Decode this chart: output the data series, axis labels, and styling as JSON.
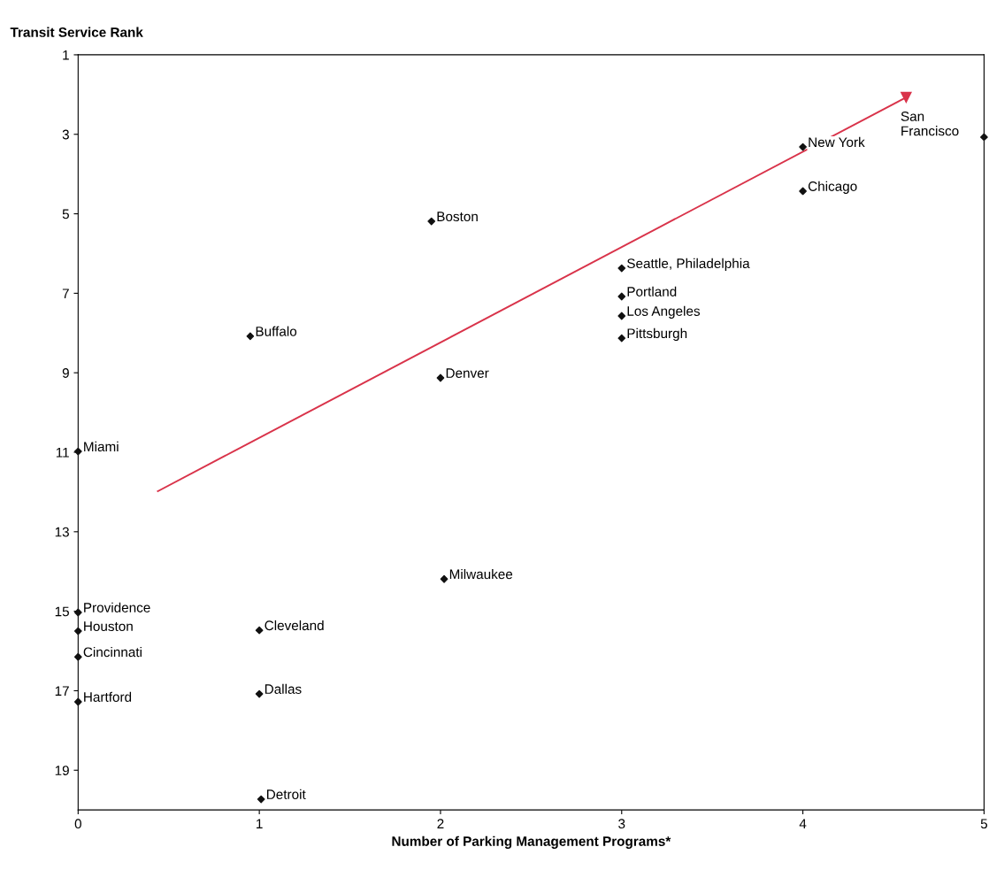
{
  "chart_data": {
    "type": "scatter",
    "xlabel": "Number of Parking Management Programs*",
    "ylabel": "Transit Service Rank",
    "xlim": [
      0,
      5
    ],
    "xticks": [
      0,
      1,
      2,
      3,
      4,
      5
    ],
    "ylim": [
      20,
      1
    ],
    "yticks": [
      1,
      3,
      5,
      7,
      9,
      11,
      13,
      15,
      17,
      19
    ],
    "grid": false,
    "legend": false,
    "series": [
      {
        "color": "#111111",
        "marker": "diamond",
        "x": [
          5,
          4,
          4,
          1.95,
          3,
          3,
          3,
          3,
          0.95,
          2,
          0,
          2.02,
          0,
          0,
          0,
          0,
          1,
          1,
          1.01
        ],
        "values": [
          3.07,
          3.32,
          4.43,
          5.19,
          6.37,
          7.08,
          7.57,
          8.13,
          8.08,
          9.13,
          10.98,
          14.19,
          15.03,
          15.5,
          16.15,
          17.28,
          15.48,
          17.08,
          19.73
        ]
      },
      {
        "type": "line",
        "color": "#d9334a",
        "marker": "triangle",
        "x": [
          0.44,
          4.57
        ],
        "values": [
          11.98,
          2.07
        ]
      }
    ],
    "annotations": [
      {
        "text": "San\nFrancisco",
        "x": 5,
        "y": 3.07
      },
      {
        "text": "New York",
        "x": 4,
        "y": 3.32
      },
      {
        "text": "Chicago",
        "x": 4,
        "y": 4.43
      },
      {
        "text": "Boston",
        "x": 1.95,
        "y": 5.19
      },
      {
        "text": "Seattle, Philadelphia",
        "x": 3,
        "y": 6.37
      },
      {
        "text": "Portland",
        "x": 3,
        "y": 7.08
      },
      {
        "text": "Los Angeles",
        "x": 3,
        "y": 7.57
      },
      {
        "text": "Pittsburgh",
        "x": 3,
        "y": 8.13
      },
      {
        "text": "Buffalo",
        "x": 0.95,
        "y": 8.08
      },
      {
        "text": "Denver",
        "x": 2,
        "y": 9.13
      },
      {
        "text": "Miami",
        "x": 0,
        "y": 10.98
      },
      {
        "text": "Milwaukee",
        "x": 2.02,
        "y": 14.19
      },
      {
        "text": "Providence",
        "x": 0,
        "y": 15.03
      },
      {
        "text": "Houston",
        "x": 0,
        "y": 15.5
      },
      {
        "text": "Cincinnati",
        "x": 0,
        "y": 16.15
      },
      {
        "text": "Hartford",
        "x": 0,
        "y": 17.28
      },
      {
        "text": "Cleveland",
        "x": 1,
        "y": 15.48
      },
      {
        "text": "Dallas",
        "x": 1,
        "y": 17.08
      },
      {
        "text": "Detroit",
        "x": 1.01,
        "y": 19.73
      }
    ]
  }
}
